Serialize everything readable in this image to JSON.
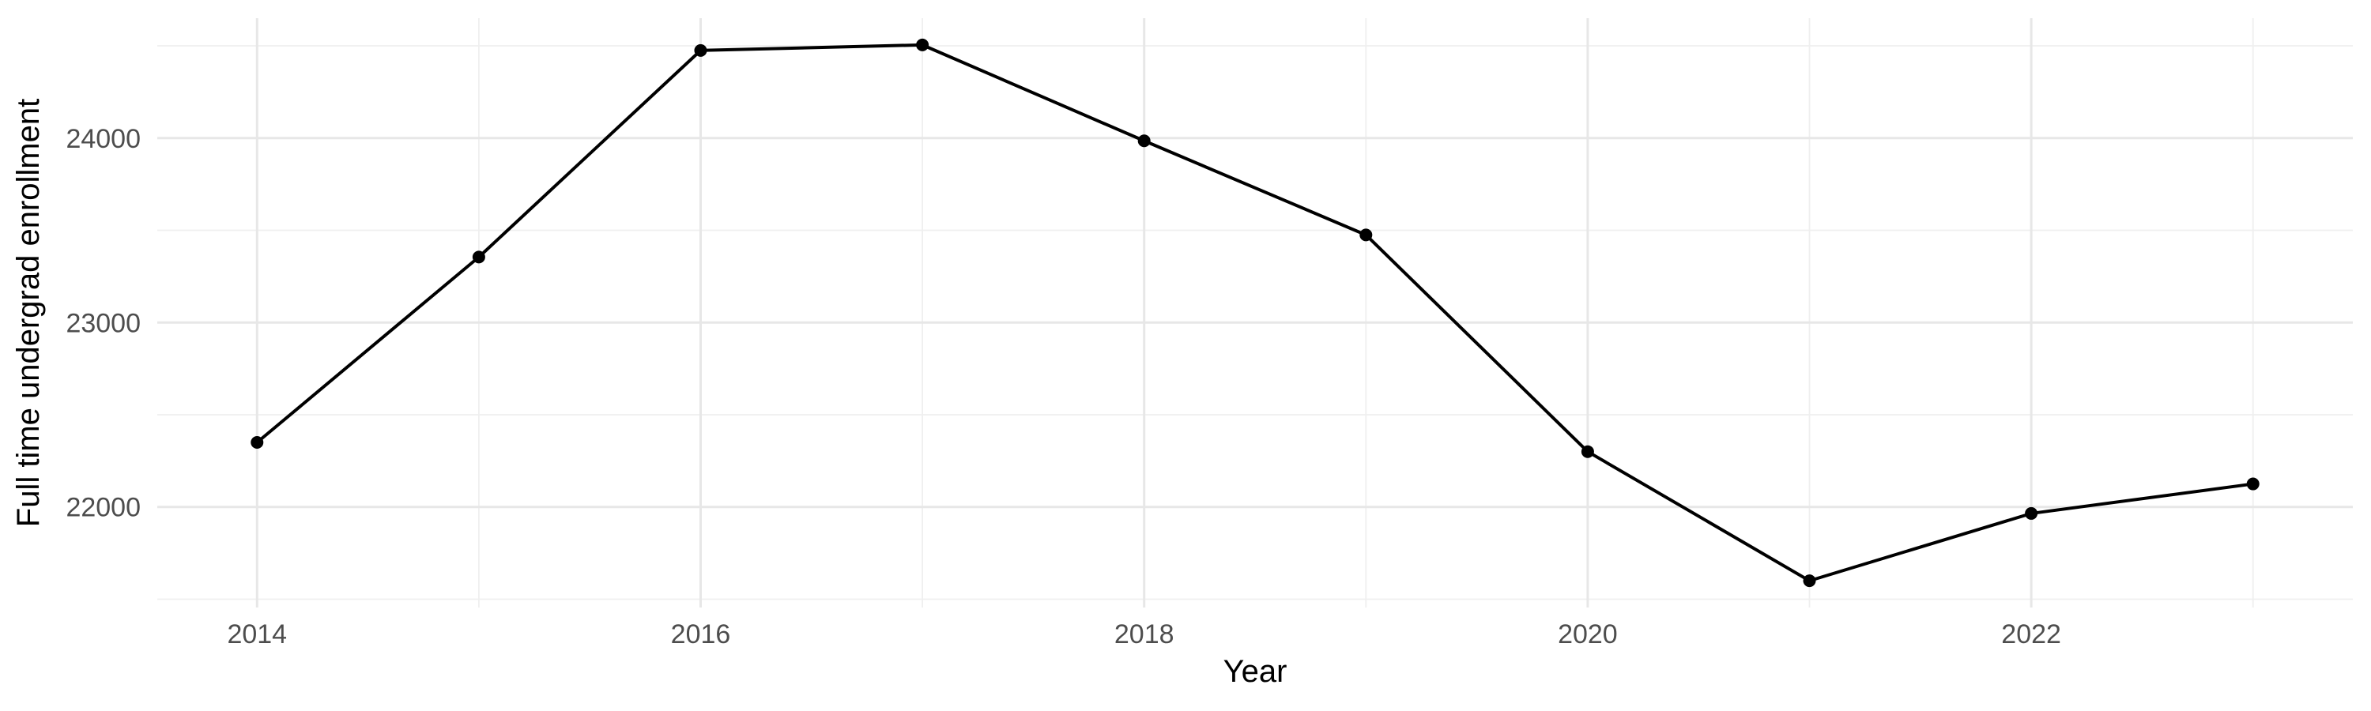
{
  "figure": {
    "background": "#ffffff"
  },
  "chart_data": {
    "type": "line",
    "xlabel": "Year",
    "ylabel": "Full time undergrad enrollment",
    "x": [
      2014,
      2015,
      2016,
      2017,
      2018,
      2019,
      2020,
      2021,
      2022,
      2023
    ],
    "values": [
      22350,
      23355,
      24475,
      24505,
      23985,
      23475,
      22300,
      21600,
      21965,
      22125
    ],
    "x_ticks": {
      "values": [
        2014,
        2016,
        2018,
        2020,
        2022
      ],
      "labels": [
        "2014",
        "2016",
        "2018",
        "2020",
        "2022"
      ]
    },
    "y_ticks": {
      "values": [
        22000,
        23000,
        24000
      ],
      "labels": [
        "22000",
        "23000",
        "24000"
      ]
    },
    "x_minor": [
      2015,
      2017,
      2019,
      2021,
      2023
    ],
    "y_minor": [
      21500,
      22500,
      23500,
      24500
    ],
    "xlim": [
      2013.55,
      2023.45
    ],
    "ylim": [
      21455,
      24650
    ],
    "grid": true,
    "legend": "none",
    "style": {
      "line_color": "#000000",
      "point_color": "#000000",
      "grid_major_color": "#e7e7e7",
      "grid_minor_color": "#efefef",
      "tick_label_color": "#4d4d4d",
      "title_color": "#000000"
    }
  }
}
